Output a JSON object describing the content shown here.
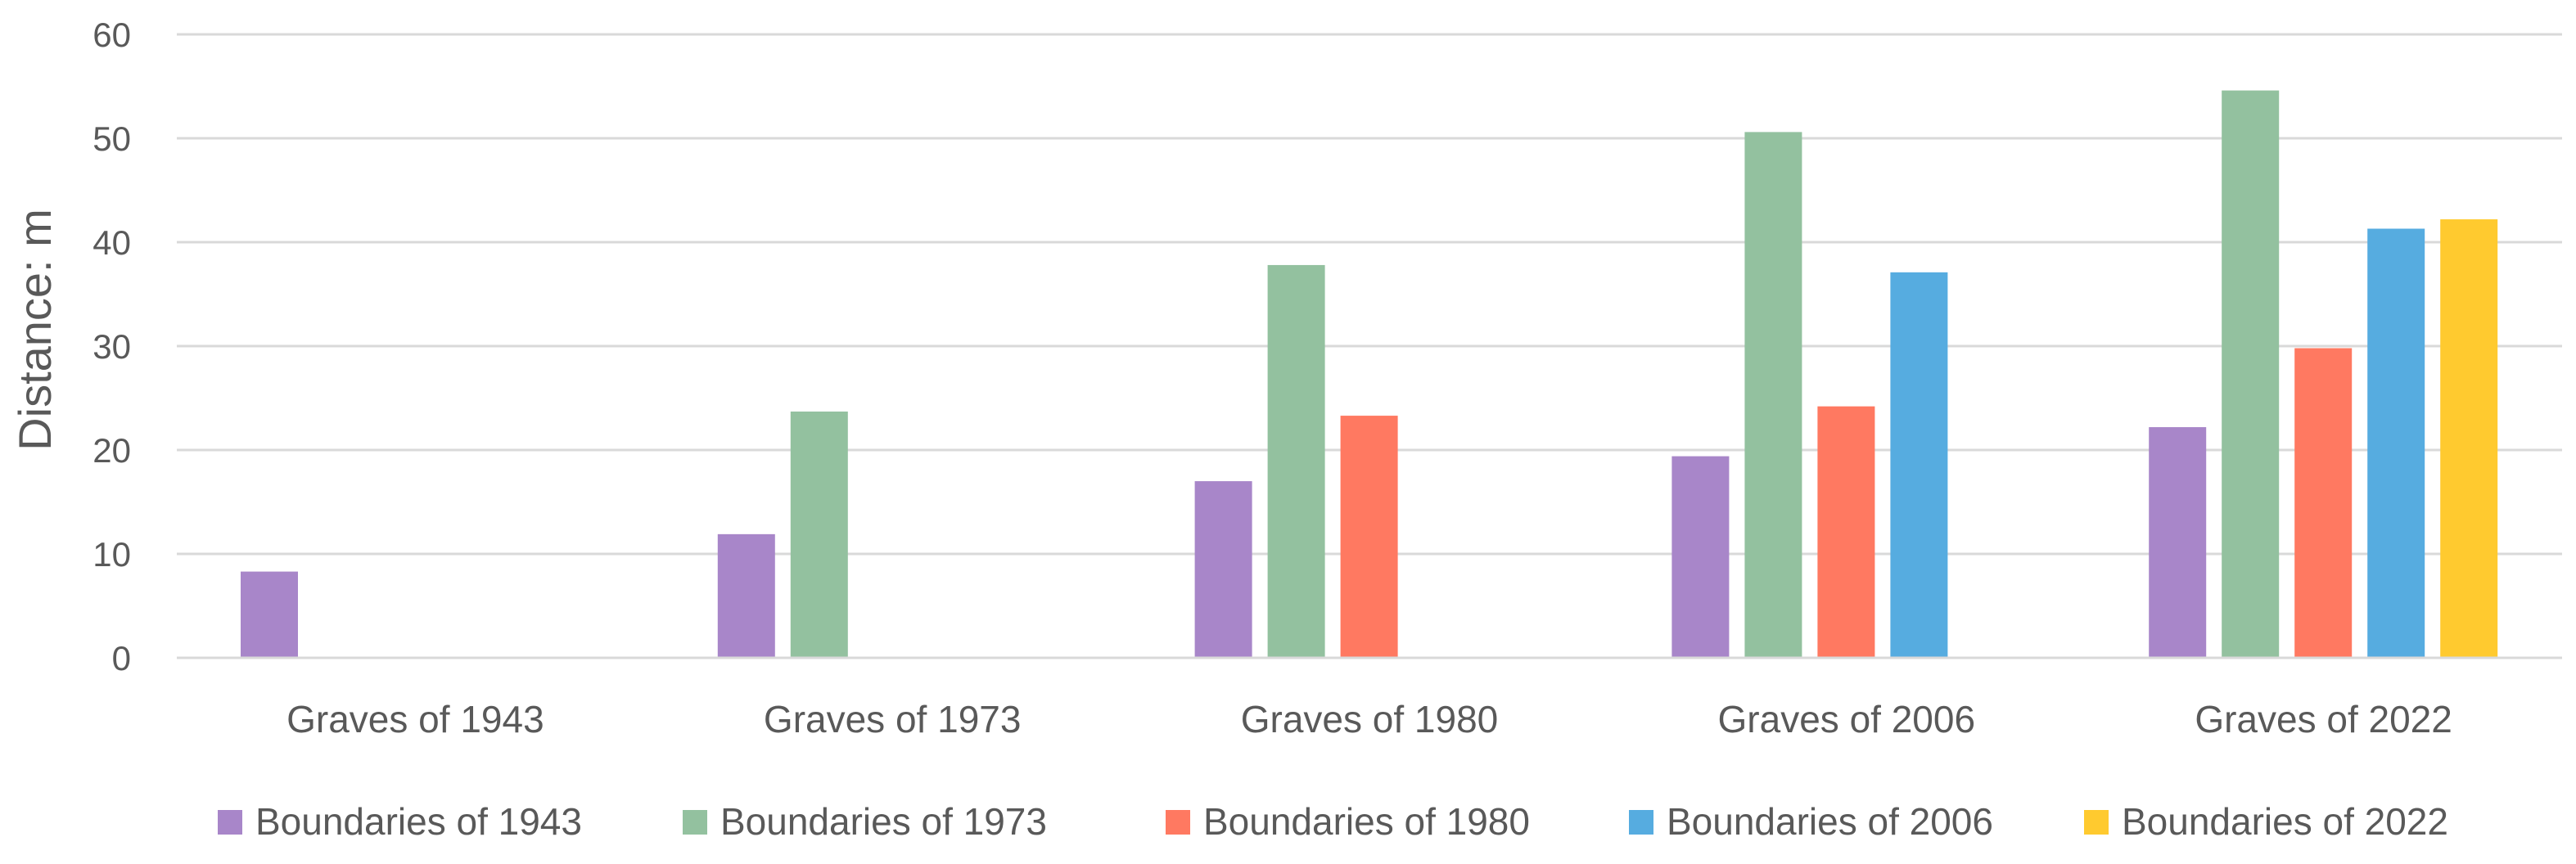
{
  "chart_data": {
    "type": "bar",
    "categories": [
      "Graves of 1943",
      "Graves of 1973",
      "Graves of 1980",
      "Graves of 2006",
      "Graves of 2022"
    ],
    "series": [
      {
        "name": "Boundaries of 1943",
        "color": "#a886c9",
        "values": [
          8.3,
          11.9,
          17.0,
          19.4,
          22.2
        ]
      },
      {
        "name": "Boundaries of 1973",
        "color": "#93c19f",
        "values": [
          null,
          23.7,
          37.8,
          50.6,
          54.6
        ]
      },
      {
        "name": "Boundaries of 1980",
        "color": "#ff7961",
        "values": [
          null,
          null,
          23.3,
          24.2,
          29.8
        ]
      },
      {
        "name": "Boundaries of 2006",
        "color": "#56ace0",
        "values": [
          null,
          null,
          null,
          37.1,
          41.3
        ]
      },
      {
        "name": "Boundaries of 2022",
        "color": "#ffca2f",
        "values": [
          null,
          null,
          null,
          null,
          42.2
        ]
      }
    ],
    "ylabel": "Distance: m",
    "ylim": [
      0,
      60
    ],
    "yticks": [
      0,
      10,
      20,
      30,
      40,
      50,
      60
    ],
    "grid": true,
    "legend_position": "bottom"
  }
}
